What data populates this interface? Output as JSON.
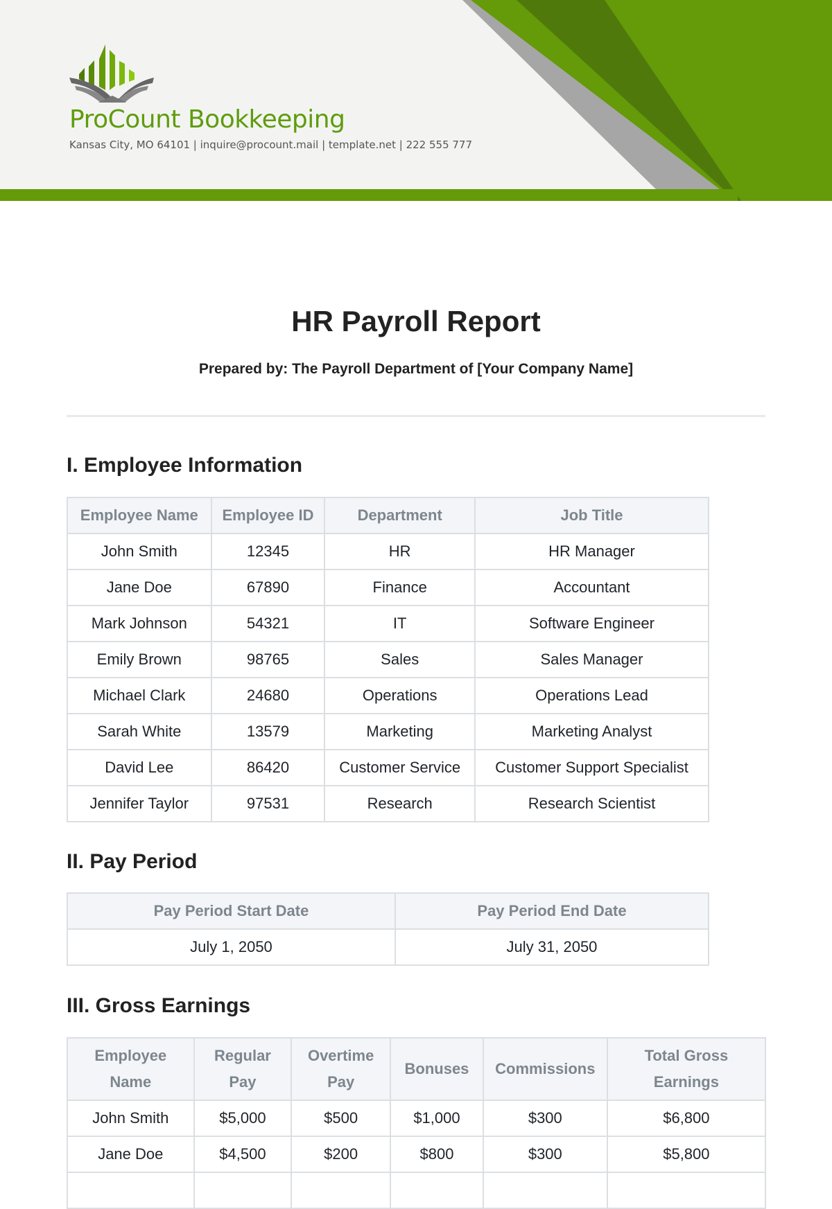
{
  "company": {
    "name": "ProCount Bookkeeping",
    "contact": "Kansas City, MO 64101 | inquire@procount.mail | template.net | 222 555 777"
  },
  "colors": {
    "accent": "#659a08",
    "accent_dark": "#4f7a0b",
    "gray": "#a6a6a6",
    "header_bg": "#f3f4f2"
  },
  "report": {
    "title": "HR Payroll Report",
    "prepared_by": "Prepared by: The Payroll Department of [Your Company Name]"
  },
  "sections": {
    "employee_info": {
      "heading": "I. Employee Information",
      "columns": [
        "Employee Name",
        "Employee ID",
        "Department",
        "Job Title"
      ],
      "rows": [
        [
          "John Smith",
          "12345",
          "HR",
          "HR Manager"
        ],
        [
          "Jane Doe",
          "67890",
          "Finance",
          "Accountant"
        ],
        [
          "Mark Johnson",
          "54321",
          "IT",
          "Software Engineer"
        ],
        [
          "Emily Brown",
          "98765",
          "Sales",
          "Sales Manager"
        ],
        [
          "Michael Clark",
          "24680",
          "Operations",
          "Operations Lead"
        ],
        [
          "Sarah White",
          "13579",
          "Marketing",
          "Marketing Analyst"
        ],
        [
          "David Lee",
          "86420",
          "Customer Service",
          "Customer Support Specialist"
        ],
        [
          "Jennifer Taylor",
          "97531",
          "Research",
          "Research Scientist"
        ]
      ]
    },
    "pay_period": {
      "heading": "II. Pay Period",
      "columns": [
        "Pay Period Start Date",
        "Pay Period End Date"
      ],
      "rows": [
        [
          "July 1, 2050",
          "July 31, 2050"
        ]
      ]
    },
    "gross_earnings": {
      "heading": "III. Gross Earnings",
      "columns": [
        "Employee Name",
        "Regular Pay",
        "Overtime Pay",
        "Bonuses",
        "Commissions",
        "Total Gross Earnings"
      ],
      "rows": [
        [
          "John Smith",
          "$5,000",
          "$500",
          "$1,000",
          "$300",
          "$6,800"
        ],
        [
          "Jane Doe",
          "$4,500",
          "$200",
          "$800",
          "$300",
          "$5,800"
        ]
      ]
    }
  }
}
